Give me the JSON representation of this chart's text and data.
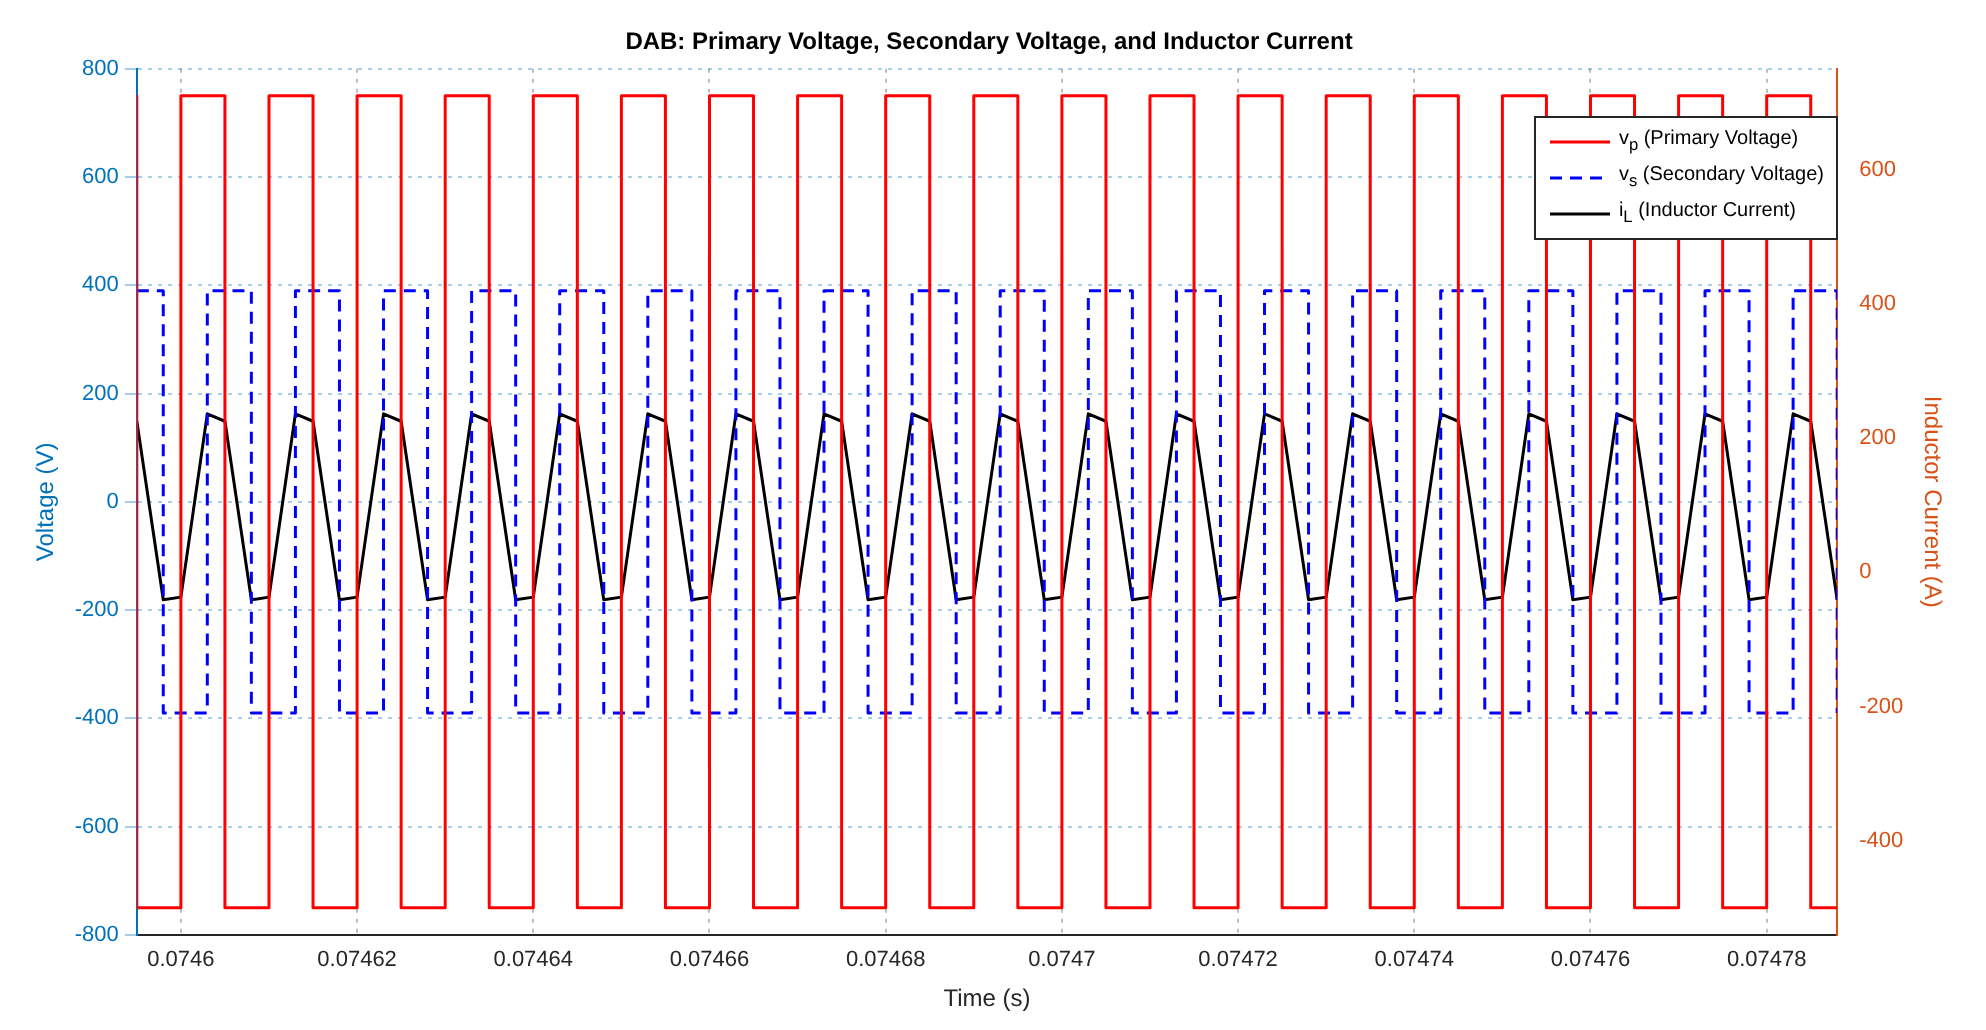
{
  "chart_data": {
    "type": "line",
    "title": "DAB: Primary Voltage, Secondary Voltage, and Inductor Current",
    "xlabel": "Time (s)",
    "ylabel": "Voltage (V)",
    "y2label": "Inductor Current (A)",
    "xlim": [
      0.074595,
      0.074788
    ],
    "xticks": [
      0.0746,
      0.07462,
      0.07464,
      0.07466,
      0.07468,
      0.0747,
      0.07472,
      0.07474,
      0.07476,
      0.07478
    ],
    "ylim": [
      -800,
      800
    ],
    "yticks": [
      -800,
      -600,
      -400,
      -200,
      0,
      200,
      400,
      600,
      800
    ],
    "y2lim": [
      -540,
      750
    ],
    "y2ticks": [
      -400,
      -200,
      0,
      200,
      400,
      600
    ],
    "grid": true,
    "legend": "top right",
    "marker": "none",
    "series": [
      {
        "name": "v$_{p}$ (Primary Voltage)",
        "color": "#ff0000",
        "line_style": "solid",
        "x": [
          0.074595,
          0.074595,
          0.0746,
          0.0746,
          0.074605,
          0.074605,
          0.07461,
          0.07461,
          0.074615,
          0.074615,
          0.07462,
          0.07462,
          0.074625,
          0.074625,
          0.07463,
          0.07463,
          0.074635,
          0.074635,
          0.07464,
          0.07464,
          0.074645,
          0.074645,
          0.07465,
          0.07465,
          0.074655,
          0.074655,
          0.07466,
          0.07466,
          0.074665,
          0.074665,
          0.07467,
          0.07467,
          0.074675,
          0.074675,
          0.07468,
          0.07468,
          0.074685,
          0.074685,
          0.07469,
          0.07469,
          0.074695,
          0.074695,
          0.0747,
          0.0747,
          0.074705,
          0.074705,
          0.07471,
          0.07471,
          0.074715,
          0.074715,
          0.07472,
          0.07472,
          0.074725,
          0.074725,
          0.07473,
          0.07473,
          0.074735,
          0.074735,
          0.07474,
          0.07474,
          0.074745,
          0.074745,
          0.07475,
          0.07475,
          0.074755,
          0.074755,
          0.07476,
          0.07476,
          0.074765,
          0.074765,
          0.07477,
          0.07477,
          0.074775,
          0.074775,
          0.07478,
          0.07478,
          0.074785,
          0.074785,
          0.074788
        ],
        "values": [
          750,
          -750,
          -750,
          750,
          750,
          -750,
          -750,
          750,
          750,
          -750,
          -750,
          750,
          750,
          -750,
          -750,
          750,
          750,
          -750,
          -750,
          750,
          750,
          -750,
          -750,
          750,
          750,
          -750,
          -750,
          750,
          750,
          -750,
          -750,
          750,
          750,
          -750,
          -750,
          750,
          750,
          -750,
          -750,
          750,
          750,
          -750,
          -750,
          750,
          750,
          -750,
          -750,
          750,
          750,
          -750,
          -750,
          750,
          750,
          -750,
          -750,
          750,
          750,
          -750,
          -750,
          750,
          750,
          -750,
          -750,
          750,
          750,
          -750,
          -750,
          750,
          750,
          -750,
          -750,
          750,
          750,
          -750,
          -750,
          750,
          750,
          -750,
          -750
        ]
      },
      {
        "name": "v$_{s}$ (Secondary Voltage)",
        "color": "#0000ff",
        "line_style": "dashed",
        "x": [
          0.074595,
          0.074598,
          0.074598,
          0.074603,
          0.074603,
          0.074608,
          0.074608,
          0.074613,
          0.074613,
          0.074618,
          0.074618,
          0.074623,
          0.074623,
          0.074628,
          0.074628,
          0.074633,
          0.074633,
          0.074638,
          0.074638,
          0.074643,
          0.074643,
          0.074648,
          0.074648,
          0.074653,
          0.074653,
          0.074658,
          0.074658,
          0.074663,
          0.074663,
          0.074668,
          0.074668,
          0.074673,
          0.074673,
          0.074678,
          0.074678,
          0.074683,
          0.074683,
          0.074688,
          0.074688,
          0.074693,
          0.074693,
          0.074698,
          0.074698,
          0.074703,
          0.074703,
          0.074708,
          0.074708,
          0.074713,
          0.074713,
          0.074718,
          0.074718,
          0.074723,
          0.074723,
          0.074728,
          0.074728,
          0.074733,
          0.074733,
          0.074738,
          0.074738,
          0.074743,
          0.074743,
          0.074748,
          0.074748,
          0.074753,
          0.074753,
          0.074758,
          0.074758,
          0.074763,
          0.074763,
          0.074768,
          0.074768,
          0.074773,
          0.074773,
          0.074778,
          0.074778,
          0.074783,
          0.074783,
          0.074788,
          0.074788
        ],
        "values": [
          390,
          390,
          -390,
          -390,
          390,
          390,
          -390,
          -390,
          390,
          390,
          -390,
          -390,
          390,
          390,
          -390,
          -390,
          390,
          390,
          -390,
          -390,
          390,
          390,
          -390,
          -390,
          390,
          390,
          -390,
          -390,
          390,
          390,
          -390,
          -390,
          390,
          390,
          -390,
          -390,
          390,
          390,
          -390,
          -390,
          390,
          390,
          -390,
          -390,
          390,
          390,
          -390,
          -390,
          390,
          390,
          -390,
          -390,
          390,
          390,
          -390,
          -390,
          390,
          390,
          -390,
          -390,
          390,
          390,
          -390,
          -390,
          390,
          390,
          -390,
          -390,
          390,
          390,
          -390,
          -390,
          390,
          390,
          -390,
          -390,
          390,
          390,
          -390
        ]
      },
      {
        "name": "i$_{L}$ (Inductor Current)",
        "color": "#000000",
        "line_style": "solid",
        "axis": "y2",
        "x": [
          0.074595,
          0.074598,
          0.0746,
          0.074603,
          0.074605,
          0.074608,
          0.07461,
          0.074613,
          0.074615,
          0.074618,
          0.07462,
          0.074623,
          0.074625,
          0.074628,
          0.07463,
          0.074633,
          0.074635,
          0.074638,
          0.07464,
          0.074643,
          0.074645,
          0.074648,
          0.07465,
          0.074653,
          0.074655,
          0.074658,
          0.07466,
          0.074663,
          0.074665,
          0.074668,
          0.07467,
          0.074673,
          0.074675,
          0.074678,
          0.07468,
          0.074683,
          0.074685,
          0.074688,
          0.07469,
          0.074693,
          0.074695,
          0.074698,
          0.0747,
          0.074703,
          0.074705,
          0.074708,
          0.07471,
          0.074713,
          0.074715,
          0.074718,
          0.07472,
          0.074723,
          0.074725,
          0.074728,
          0.07473,
          0.074733,
          0.074735,
          0.074738,
          0.07474,
          0.074743,
          0.074745,
          0.074748,
          0.07475,
          0.074753,
          0.074755,
          0.074758,
          0.07476,
          0.074763,
          0.074765,
          0.074768,
          0.07477,
          0.074773,
          0.074775,
          0.074778,
          0.07478,
          0.074783,
          0.074785,
          0.074788
        ],
        "values": [
          225,
          -41,
          -37,
          236,
          225,
          -41,
          -37,
          236,
          225,
          -41,
          -37,
          236,
          225,
          -41,
          -37,
          236,
          225,
          -41,
          -37,
          236,
          225,
          -41,
          -37,
          236,
          225,
          -41,
          -37,
          236,
          225,
          -41,
          -37,
          236,
          225,
          -41,
          -37,
          236,
          225,
          -41,
          -37,
          236,
          225,
          -41,
          -37,
          236,
          225,
          -41,
          -37,
          236,
          225,
          -41,
          -37,
          236,
          225,
          -41,
          -37,
          236,
          225,
          -41,
          -37,
          236,
          225,
          -41,
          -37,
          236,
          225,
          -41,
          -37,
          236,
          225,
          -41,
          -37,
          236,
          225,
          -41,
          -37,
          236,
          225,
          -41
        ]
      }
    ]
  }
}
